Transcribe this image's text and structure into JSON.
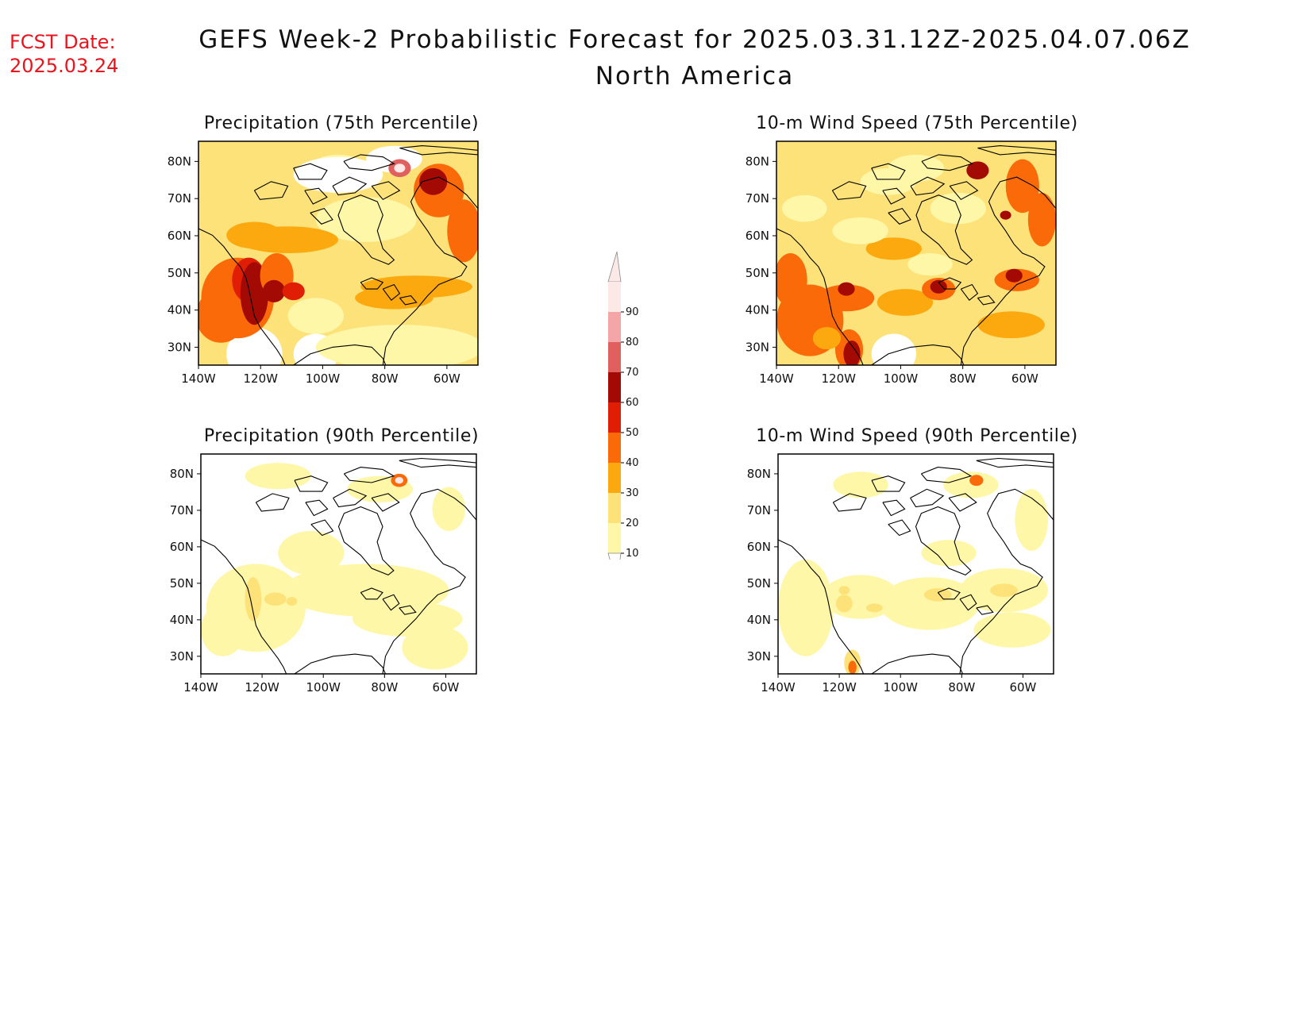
{
  "header": {
    "fcst_label": "FCST Date:",
    "fcst_date": "2025.03.24",
    "title": "GEFS Week-2 Probabilistic Forecast for 2025.03.31.12Z-2025.04.07.06Z",
    "subtitle": "North America"
  },
  "axes": {
    "lon_ticks": [
      "140W",
      "120W",
      "100W",
      "80W",
      "60W"
    ],
    "lat_ticks": [
      "80N",
      "70N",
      "60N",
      "50N",
      "40N",
      "30N"
    ]
  },
  "panels": [
    {
      "id": "precip75",
      "title": "Precipitation (75th Percentile)",
      "variable": "precipitation",
      "percentile": 75
    },
    {
      "id": "wind75",
      "title": "10-m Wind Speed (75th Percentile)",
      "variable": "wind",
      "percentile": 75
    },
    {
      "id": "precip90",
      "title": "Precipitation (90th Percentile)",
      "variable": "precipitation",
      "percentile": 90
    },
    {
      "id": "wind90",
      "title": "10-m Wind Speed (90th Percentile)",
      "variable": "wind",
      "percentile": 90
    }
  ],
  "colorbar": {
    "levels": [
      "10",
      "20",
      "30",
      "40",
      "50",
      "60",
      "70",
      "80",
      "90"
    ],
    "colors": [
      "#fff7a8",
      "#fde27a",
      "#fca90f",
      "#fb6a09",
      "#e01e06",
      "#a30a04",
      "#e06060",
      "#f4a6a6",
      "#fde8e8"
    ]
  }
}
